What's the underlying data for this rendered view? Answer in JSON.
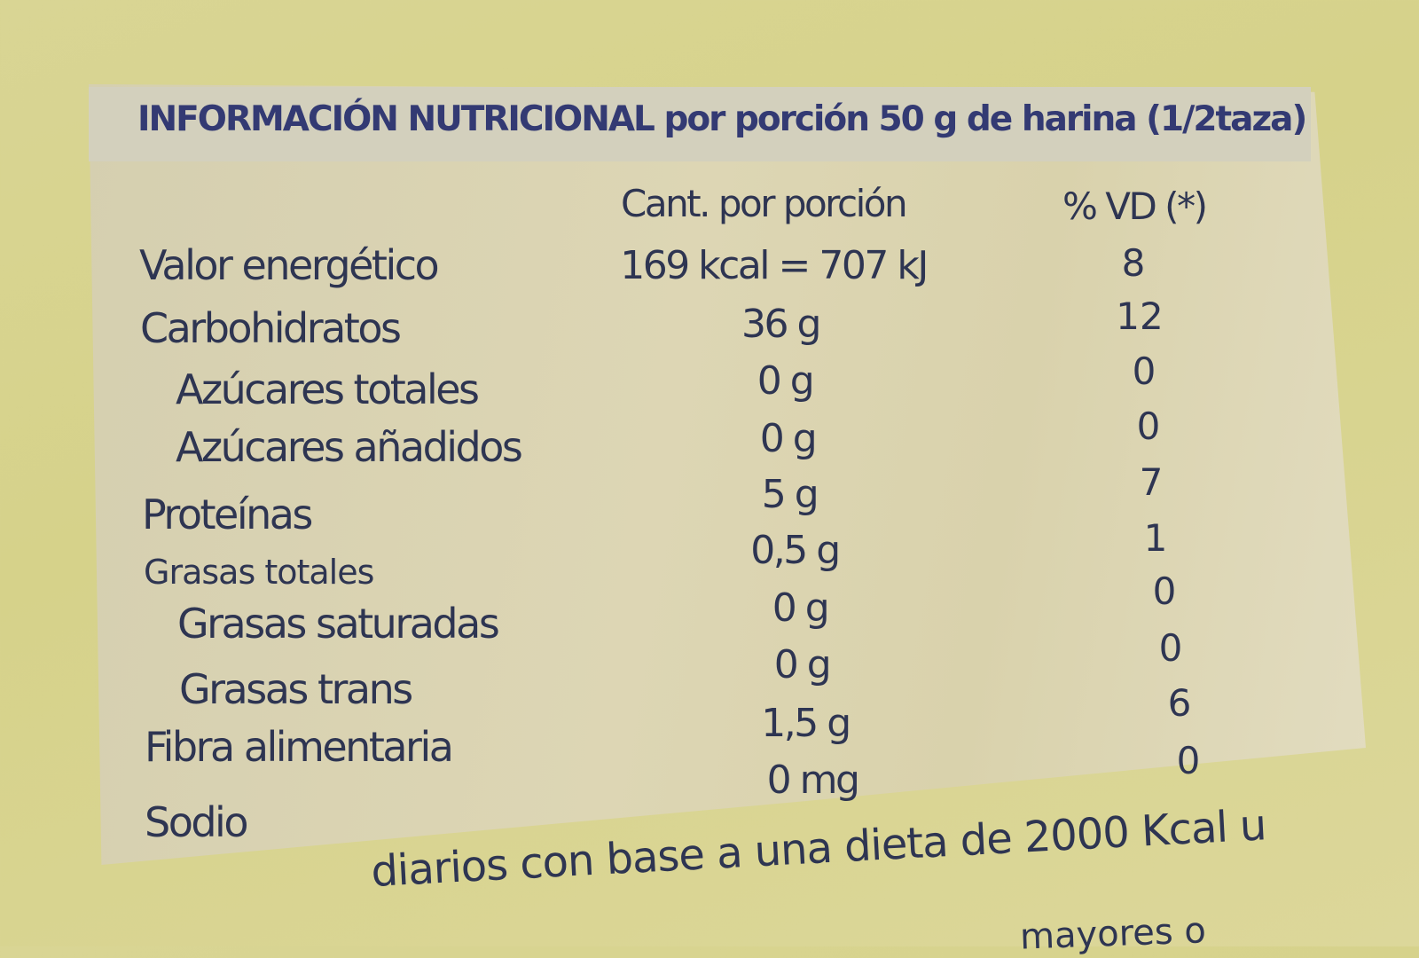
{
  "title": "INFORMACIÓN NUTRICIONAL por porción 50 g de harina (1/2taza)",
  "columns": {
    "amount": "Cant. por porción",
    "dv": "% VD (*)"
  },
  "rows": [
    {
      "label": "Valor energético",
      "amount": "169 kcal = 707 kJ",
      "dv": "8"
    },
    {
      "label": "Carbohidratos",
      "amount": "36 g",
      "dv": "12"
    },
    {
      "label": "Azúcares totales",
      "amount": "0 g",
      "dv": "0"
    },
    {
      "label": "Azúcares añadidos",
      "amount": "0 g",
      "dv": "0"
    },
    {
      "label": "Proteínas",
      "amount": "5 g",
      "dv": "7"
    },
    {
      "label": "Grasas totales",
      "amount": "0,5 g",
      "dv": "1"
    },
    {
      "label": "Grasas saturadas",
      "amount": "0 g",
      "dv": "0"
    },
    {
      "label": "Grasas trans",
      "amount": "0 g",
      "dv": "0"
    },
    {
      "label": "Fibra alimentaria",
      "amount": "1,5 g",
      "dv": "6"
    },
    {
      "label": "Sodio",
      "amount": "0 mg",
      "dv": "0"
    }
  ],
  "footnote": "diarios con base a una dieta de 2000 Kcal u",
  "footnote_partial": "mayores o"
}
